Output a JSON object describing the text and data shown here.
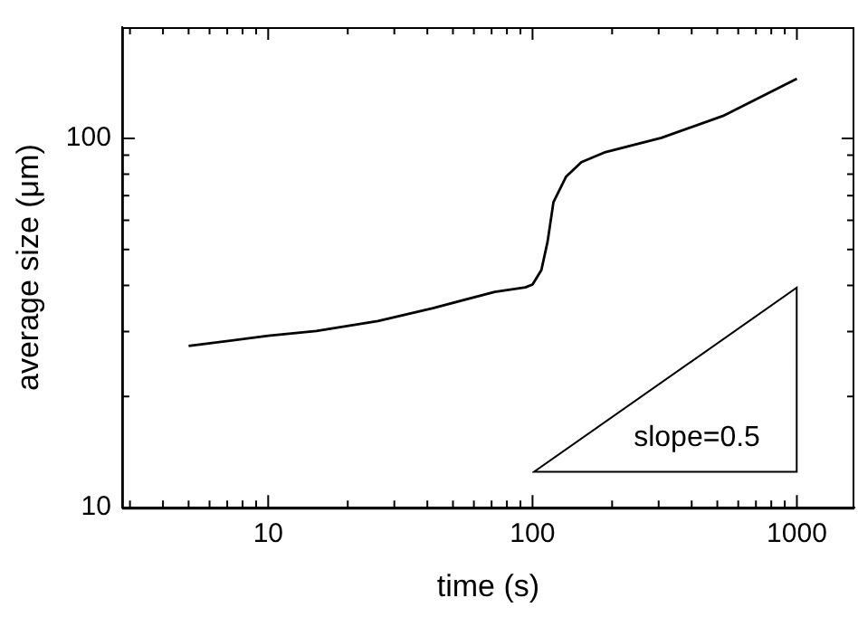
{
  "chart_data": {
    "type": "line",
    "xlabel": "time (s)",
    "ylabel": "average size (μm)",
    "log": "xy",
    "grid": false,
    "legend": false,
    "marker": "none",
    "line_style": "solid",
    "xlim": [
      2.8,
      1650
    ],
    "ylim": [
      10,
      200
    ],
    "xticks": [
      {
        "value": 3,
        "label": null
      },
      {
        "value": 4,
        "label": null
      },
      {
        "value": 5,
        "label": null
      },
      {
        "value": 6,
        "label": null
      },
      {
        "value": 7,
        "label": null
      },
      {
        "value": 8,
        "label": null
      },
      {
        "value": 9,
        "label": null
      },
      10,
      {
        "value": 20,
        "label": null
      },
      {
        "value": 30,
        "label": null
      },
      {
        "value": 40,
        "label": null
      },
      {
        "value": 50,
        "label": null
      },
      {
        "value": 60,
        "label": null
      },
      {
        "value": 70,
        "label": null
      },
      {
        "value": 80,
        "label": null
      },
      {
        "value": 90,
        "label": null
      },
      100,
      {
        "value": 200,
        "label": null
      },
      {
        "value": 300,
        "label": null
      },
      {
        "value": 400,
        "label": null
      },
      {
        "value": 500,
        "label": null
      },
      {
        "value": 600,
        "label": null
      },
      {
        "value": 700,
        "label": null
      },
      {
        "value": 800,
        "label": null
      },
      {
        "value": 900,
        "label": null
      },
      1000
    ],
    "yticks": [
      10,
      {
        "value": 20,
        "label": null
      },
      {
        "value": 30,
        "label": null
      },
      {
        "value": 40,
        "label": null
      },
      {
        "value": 50,
        "label": null
      },
      {
        "value": 60,
        "label": null
      },
      {
        "value": 70,
        "label": null
      },
      {
        "value": 80,
        "label": null
      },
      {
        "value": 90,
        "label": null
      },
      100
    ],
    "series": [
      {
        "color": "#000000",
        "x": [
          5,
          10,
          15.2,
          26,
          42,
          72,
          94,
          100,
          108,
          114,
          120,
          134,
          153,
          189,
          307,
          525,
          1000
        ],
        "values": [
          27.4,
          29.2,
          30.1,
          32,
          34.7,
          38.4,
          39.5,
          40.2,
          44,
          52.5,
          67.2,
          78.8,
          86.2,
          91.8,
          100.3,
          115,
          145
        ]
      }
    ],
    "annotations": [
      "slope=0.5"
    ]
  }
}
